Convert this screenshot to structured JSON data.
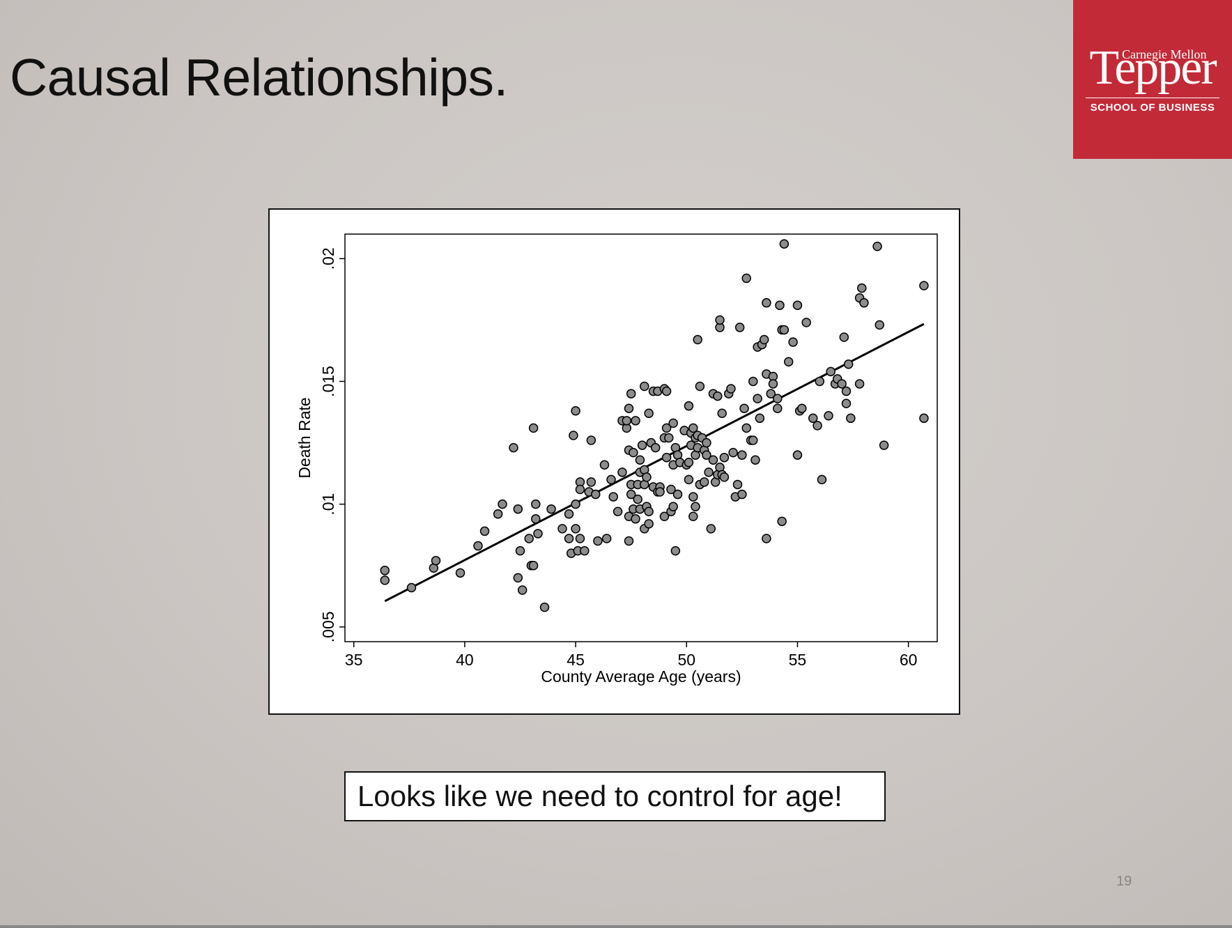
{
  "slide": {
    "title": "Causal Relationships.",
    "callout": "Looks like we need to control for age!",
    "page_number": "19"
  },
  "logo": {
    "top_line": "Carnegie Mellon",
    "name": "Tepper",
    "school": "SCHOOL OF BUSINESS",
    "background_color": "#c22a38"
  },
  "chart_data": {
    "type": "scatter",
    "title": "",
    "xlabel": "County Average Age (years)",
    "ylabel": "Death Rate",
    "xlim": [
      34.6,
      61.3
    ],
    "ylim": [
      0.0044,
      0.021
    ],
    "xticks": [
      35,
      40,
      45,
      50,
      55,
      60
    ],
    "xtick_labels": [
      "35",
      "40",
      "45",
      "50",
      "55",
      "60"
    ],
    "yticks": [
      0.005,
      0.01,
      0.015,
      0.02
    ],
    "ytick_labels": [
      ".005",
      ".01",
      ".015",
      ".02"
    ],
    "grid": false,
    "marker_color": "#8c8c8c",
    "line_color": "#000000",
    "fit_line": {
      "x": [
        36.4,
        60.7
      ],
      "y": [
        0.00605,
        0.01734
      ]
    },
    "points": [
      [
        36.4,
        0.0073
      ],
      [
        36.4,
        0.0069
      ],
      [
        37.6,
        0.0066
      ],
      [
        38.6,
        0.0074
      ],
      [
        38.7,
        0.0077
      ],
      [
        39.8,
        0.0072
      ],
      [
        40.6,
        0.0083
      ],
      [
        40.9,
        0.0089
      ],
      [
        41.5,
        0.0096
      ],
      [
        41.7,
        0.01
      ],
      [
        42.2,
        0.0123
      ],
      [
        42.4,
        0.007
      ],
      [
        42.4,
        0.0098
      ],
      [
        42.5,
        0.0081
      ],
      [
        42.6,
        0.0065
      ],
      [
        42.9,
        0.0086
      ],
      [
        43.0,
        0.0075
      ],
      [
        43.1,
        0.0075
      ],
      [
        43.1,
        0.0131
      ],
      [
        43.2,
        0.01
      ],
      [
        43.2,
        0.0094
      ],
      [
        43.3,
        0.0088
      ],
      [
        43.6,
        0.0058
      ],
      [
        43.9,
        0.0098
      ],
      [
        44.4,
        0.009
      ],
      [
        44.7,
        0.0096
      ],
      [
        44.7,
        0.0086
      ],
      [
        44.8,
        0.008
      ],
      [
        44.9,
        0.0128
      ],
      [
        45.0,
        0.0138
      ],
      [
        45.0,
        0.01
      ],
      [
        45.0,
        0.009
      ],
      [
        45.1,
        0.0081
      ],
      [
        45.2,
        0.0109
      ],
      [
        45.2,
        0.0086
      ],
      [
        45.2,
        0.0106
      ],
      [
        45.4,
        0.0081
      ],
      [
        45.6,
        0.0105
      ],
      [
        45.7,
        0.0126
      ],
      [
        45.7,
        0.0109
      ],
      [
        45.9,
        0.0104
      ],
      [
        46.0,
        0.0085
      ],
      [
        46.3,
        0.0116
      ],
      [
        46.4,
        0.0086
      ],
      [
        46.6,
        0.011
      ],
      [
        46.7,
        0.0103
      ],
      [
        46.9,
        0.0097
      ],
      [
        47.1,
        0.0113
      ],
      [
        47.1,
        0.0134
      ],
      [
        47.3,
        0.0131
      ],
      [
        47.3,
        0.0134
      ],
      [
        47.4,
        0.0139
      ],
      [
        47.4,
        0.0122
      ],
      [
        47.4,
        0.0085
      ],
      [
        47.4,
        0.0095
      ],
      [
        47.5,
        0.0145
      ],
      [
        47.5,
        0.0108
      ],
      [
        47.5,
        0.0104
      ],
      [
        47.6,
        0.0121
      ],
      [
        47.6,
        0.0098
      ],
      [
        47.7,
        0.0094
      ],
      [
        47.7,
        0.0134
      ],
      [
        47.8,
        0.0108
      ],
      [
        47.8,
        0.0102
      ],
      [
        47.9,
        0.0113
      ],
      [
        47.9,
        0.0118
      ],
      [
        47.9,
        0.0098
      ],
      [
        48.0,
        0.0124
      ],
      [
        48.1,
        0.009
      ],
      [
        48.1,
        0.0114
      ],
      [
        48.1,
        0.0148
      ],
      [
        48.1,
        0.0108
      ],
      [
        48.2,
        0.0099
      ],
      [
        48.2,
        0.0111
      ],
      [
        48.3,
        0.0097
      ],
      [
        48.3,
        0.0092
      ],
      [
        48.3,
        0.0137
      ],
      [
        48.4,
        0.0125
      ],
      [
        48.5,
        0.0107
      ],
      [
        48.5,
        0.0146
      ],
      [
        48.6,
        0.0123
      ],
      [
        48.7,
        0.0146
      ],
      [
        48.7,
        0.0105
      ],
      [
        48.8,
        0.0107
      ],
      [
        48.8,
        0.0105
      ],
      [
        49.0,
        0.0095
      ],
      [
        49.0,
        0.0127
      ],
      [
        49.0,
        0.0147
      ],
      [
        49.1,
        0.0119
      ],
      [
        49.1,
        0.0131
      ],
      [
        49.1,
        0.0146
      ],
      [
        49.2,
        0.0127
      ],
      [
        49.3,
        0.0106
      ],
      [
        49.3,
        0.0097
      ],
      [
        49.4,
        0.0099
      ],
      [
        49.4,
        0.0116
      ],
      [
        49.4,
        0.0133
      ],
      [
        49.5,
        0.0123
      ],
      [
        49.5,
        0.0081
      ],
      [
        49.6,
        0.012
      ],
      [
        49.6,
        0.0104
      ],
      [
        49.7,
        0.0117
      ],
      [
        49.9,
        0.013
      ],
      [
        50.0,
        0.0116
      ],
      [
        50.1,
        0.0117
      ],
      [
        50.1,
        0.011
      ],
      [
        50.1,
        0.014
      ],
      [
        50.2,
        0.0124
      ],
      [
        50.2,
        0.0129
      ],
      [
        50.3,
        0.0131
      ],
      [
        50.3,
        0.0103
      ],
      [
        50.3,
        0.0095
      ],
      [
        50.4,
        0.0127
      ],
      [
        50.4,
        0.012
      ],
      [
        50.4,
        0.0099
      ],
      [
        50.5,
        0.0123
      ],
      [
        50.5,
        0.0128
      ],
      [
        50.5,
        0.0167
      ],
      [
        50.6,
        0.0108
      ],
      [
        50.6,
        0.0148
      ],
      [
        50.7,
        0.0127
      ],
      [
        50.8,
        0.0109
      ],
      [
        50.8,
        0.0122
      ],
      [
        50.9,
        0.012
      ],
      [
        50.9,
        0.0125
      ],
      [
        51.0,
        0.0113
      ],
      [
        51.1,
        0.009
      ],
      [
        51.2,
        0.0145
      ],
      [
        51.2,
        0.0118
      ],
      [
        51.3,
        0.0109
      ],
      [
        51.4,
        0.0112
      ],
      [
        51.4,
        0.0144
      ],
      [
        51.5,
        0.0172
      ],
      [
        51.5,
        0.0175
      ],
      [
        51.5,
        0.0115
      ],
      [
        51.6,
        0.0137
      ],
      [
        51.6,
        0.0112
      ],
      [
        51.7,
        0.0119
      ],
      [
        51.7,
        0.0111
      ],
      [
        51.9,
        0.0145
      ],
      [
        52.0,
        0.0147
      ],
      [
        52.1,
        0.0121
      ],
      [
        52.2,
        0.0103
      ],
      [
        52.3,
        0.0108
      ],
      [
        52.4,
        0.0172
      ],
      [
        52.5,
        0.012
      ],
      [
        52.5,
        0.0104
      ],
      [
        52.6,
        0.0139
      ],
      [
        52.7,
        0.0131
      ],
      [
        52.7,
        0.0192
      ],
      [
        52.9,
        0.0126
      ],
      [
        53.0,
        0.015
      ],
      [
        53.0,
        0.0126
      ],
      [
        53.1,
        0.0118
      ],
      [
        53.2,
        0.0164
      ],
      [
        53.2,
        0.0143
      ],
      [
        53.3,
        0.0135
      ],
      [
        53.4,
        0.0165
      ],
      [
        53.5,
        0.0167
      ],
      [
        53.6,
        0.0086
      ],
      [
        53.6,
        0.0182
      ],
      [
        53.6,
        0.0153
      ],
      [
        53.8,
        0.0145
      ],
      [
        53.9,
        0.0152
      ],
      [
        53.9,
        0.0149
      ],
      [
        54.1,
        0.0143
      ],
      [
        54.1,
        0.0139
      ],
      [
        54.2,
        0.0181
      ],
      [
        54.3,
        0.0093
      ],
      [
        54.3,
        0.0171
      ],
      [
        54.4,
        0.0206
      ],
      [
        54.4,
        0.0171
      ],
      [
        54.6,
        0.0158
      ],
      [
        54.8,
        0.0166
      ],
      [
        55.0,
        0.0181
      ],
      [
        55.0,
        0.012
      ],
      [
        55.1,
        0.0138
      ],
      [
        55.2,
        0.0139
      ],
      [
        55.4,
        0.0174
      ],
      [
        55.7,
        0.0135
      ],
      [
        55.9,
        0.0132
      ],
      [
        56.0,
        0.015
      ],
      [
        56.1,
        0.011
      ],
      [
        56.4,
        0.0136
      ],
      [
        56.5,
        0.0154
      ],
      [
        56.7,
        0.0149
      ],
      [
        56.8,
        0.0151
      ],
      [
        57.0,
        0.0149
      ],
      [
        57.1,
        0.0168
      ],
      [
        57.2,
        0.0141
      ],
      [
        57.2,
        0.0146
      ],
      [
        57.3,
        0.0157
      ],
      [
        57.4,
        0.0135
      ],
      [
        57.8,
        0.0184
      ],
      [
        57.8,
        0.0149
      ],
      [
        57.9,
        0.0188
      ],
      [
        58.0,
        0.0182
      ],
      [
        58.6,
        0.0205
      ],
      [
        58.7,
        0.0173
      ],
      [
        58.9,
        0.0124
      ],
      [
        60.7,
        0.0189
      ],
      [
        60.7,
        0.0135
      ]
    ]
  }
}
